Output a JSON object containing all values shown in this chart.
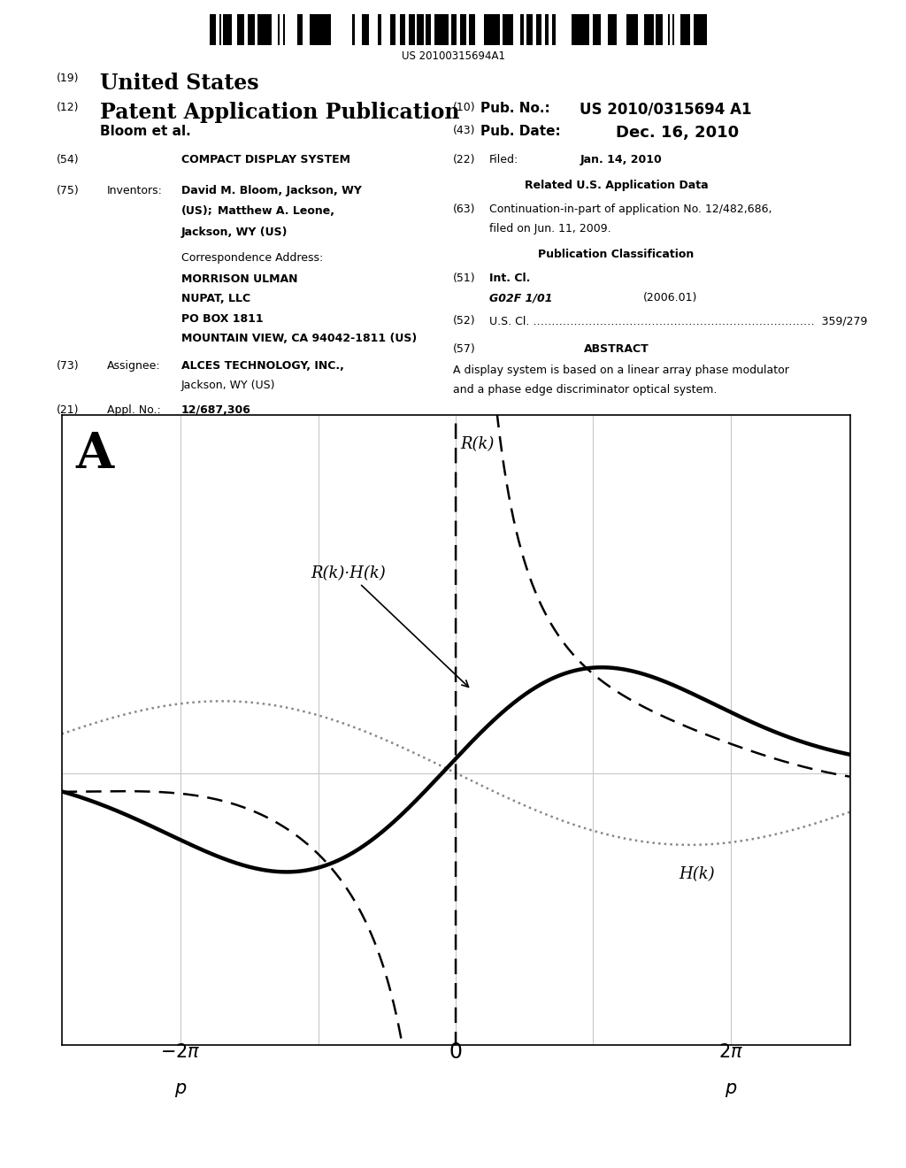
{
  "patent_number": "US 20100315694A1",
  "pub_number": "US 2010/0315694 A1",
  "pub_date": "Dec. 16, 2010",
  "abstract": "A display system is based on a linear array phase modulator and a phase edge discriminator optical system.",
  "fig_label": "A",
  "curve_dotted_color": "#888888",
  "curve_solid_color": "#000000",
  "curve_dashed_color": "#000000",
  "background_color": "#ffffff",
  "annotation_Rk_Hk": "R(k)·H(k)",
  "annotation_Rk": "R(k)",
  "annotation_Hk": "H(k)",
  "xlim": [
    -4.5,
    4.5
  ],
  "ylim": [
    -1.9,
    2.5
  ],
  "scale": 1.57
}
